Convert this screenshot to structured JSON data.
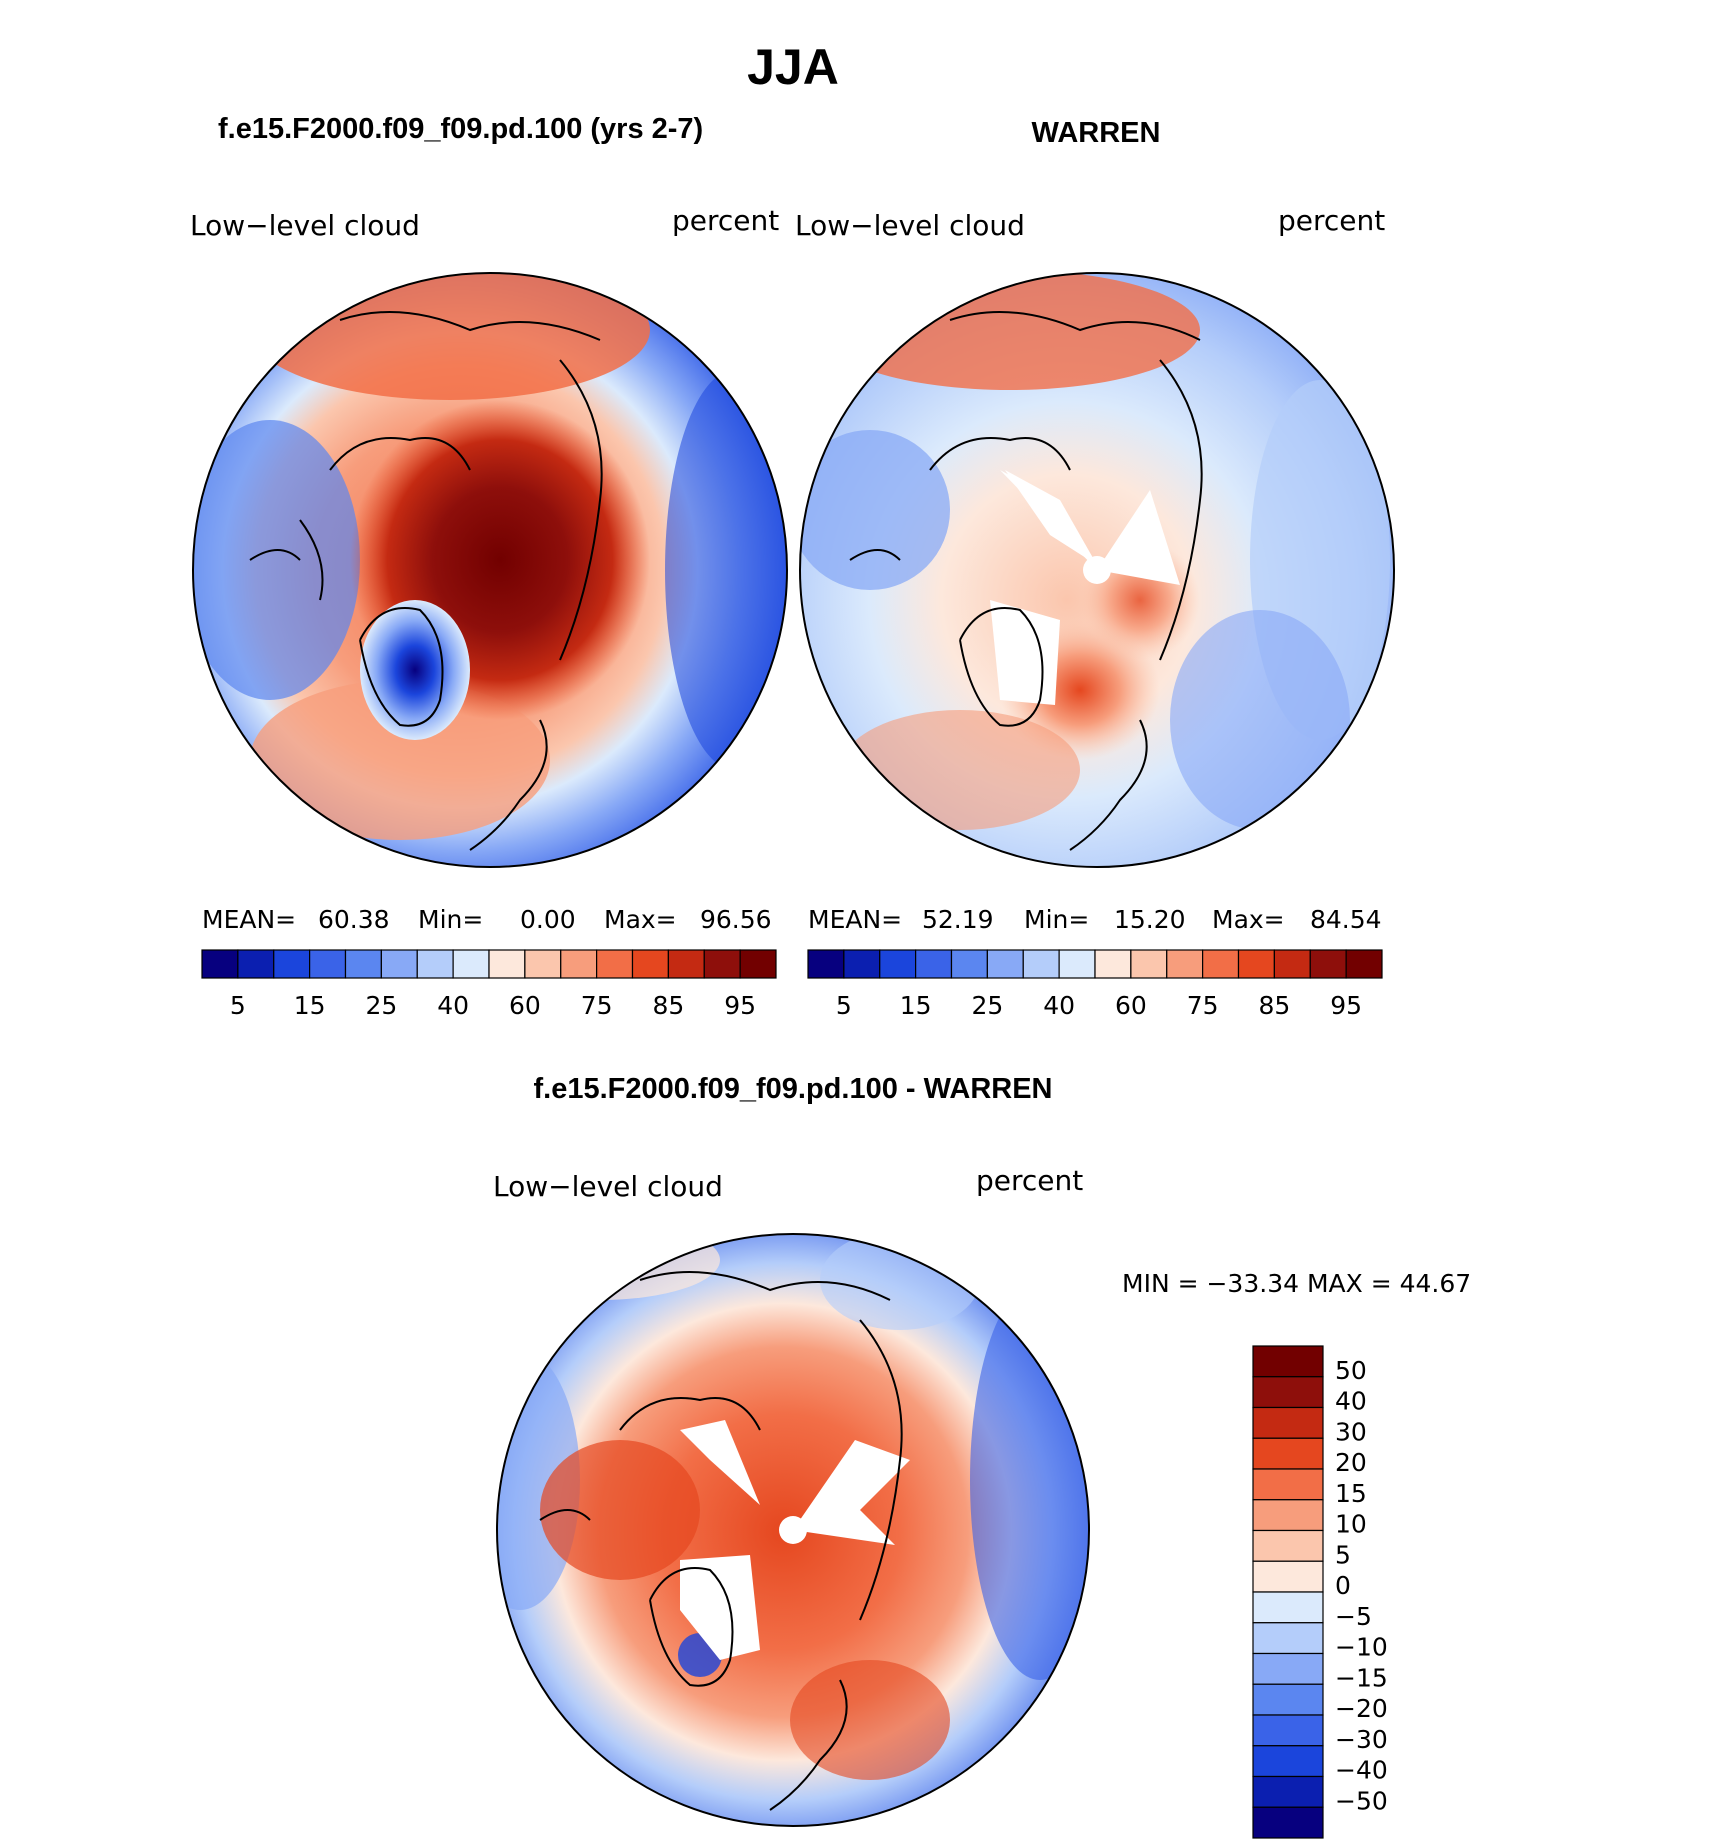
{
  "figure": {
    "title": "JJA"
  },
  "panels": [
    {
      "case_title": "f.e15.F2000.f09_f09.pd.100 (yrs 2-7)",
      "variable_label": "Low−level cloud",
      "units_label": "percent",
      "stats": {
        "mean_label": "MEAN=",
        "mean": "60.38",
        "min_label": "Min=",
        "min": "0.00",
        "max_label": "Max=",
        "max": "96.56"
      }
    },
    {
      "case_title": "WARREN",
      "variable_label": "Low−level cloud",
      "units_label": "percent",
      "stats": {
        "mean_label": "MEAN=",
        "mean": "52.19",
        "min_label": "Min=",
        "min": "15.20",
        "max_label": "Max=",
        "max": "84.54"
      }
    },
    {
      "case_title": "f.e15.F2000.f09_f09.pd.100 - WARREN",
      "variable_label": "Low−level cloud",
      "units_label": "percent",
      "stats_text": "MIN = −33.34 MAX =   44.67"
    }
  ],
  "abs_colorbar": {
    "levels": [
      5,
      10,
      15,
      20,
      25,
      30,
      40,
      50,
      60,
      70,
      75,
      80,
      85,
      90,
      95
    ],
    "tick_labels": [
      "5",
      "15",
      "25",
      "40",
      "60",
      "75",
      "85",
      "95"
    ],
    "colors": [
      "#07007f",
      "#0b1fb0",
      "#1b45dc",
      "#3a63e8",
      "#5b86f0",
      "#88a9f6",
      "#b4cdfa",
      "#dbeafc",
      "#fde8dc",
      "#fbc6ad",
      "#f79d7c",
      "#f26e47",
      "#e5471f",
      "#c42a12",
      "#8e0f0b",
      "#720000"
    ]
  },
  "diff_colorbar": {
    "levels": [
      -50,
      -40,
      -30,
      -20,
      -15,
      -10,
      -5,
      0,
      5,
      10,
      15,
      20,
      30,
      40,
      50
    ],
    "tick_labels": [
      "−50",
      "−40",
      "−30",
      "−20",
      "−15",
      "−10",
      "−5",
      "0",
      "5",
      "10",
      "15",
      "20",
      "30",
      "40",
      "50"
    ],
    "colors": [
      "#07007f",
      "#0b1fb0",
      "#1b45dc",
      "#3a63e8",
      "#5b86f0",
      "#88a9f6",
      "#b4cdfa",
      "#dbeafc",
      "#fde8dc",
      "#fbc6ad",
      "#f79d7c",
      "#f26e47",
      "#e5471f",
      "#c42a12",
      "#8e0f0b",
      "#720000"
    ]
  },
  "chart_data": [
    {
      "type": "heatmap",
      "title": "f.e15.F2000.f09_f09.pd.100 (yrs 2-7)",
      "projection": "north-polar-stereographic",
      "variable": "Low−level cloud",
      "units": "percent",
      "mean": 60.38,
      "min": 0.0,
      "max": 96.56
    },
    {
      "type": "heatmap",
      "title": "WARREN",
      "projection": "north-polar-stereographic",
      "variable": "Low−level cloud",
      "units": "percent",
      "mean": 52.19,
      "min": 15.2,
      "max": 84.54
    },
    {
      "type": "heatmap",
      "title": "f.e15.F2000.f09_f09.pd.100 - WARREN",
      "projection": "north-polar-stereographic",
      "variable": "Low−level cloud",
      "units": "percent",
      "min": -33.34,
      "max": 44.67
    }
  ]
}
